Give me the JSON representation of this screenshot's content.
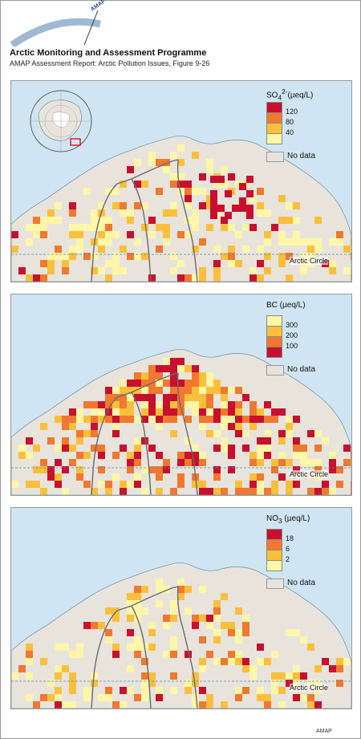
{
  "header": {
    "logo_text": "AMAP",
    "title": "Arctic Monitoring and Assessment Programme",
    "subtitle": "AMAP Assessment Report: Arctic Pollution Issues, Figure 9-26"
  },
  "panels": [
    {
      "id": "so4",
      "legend_title": "SO4 2- (µeq/L)",
      "legend_title_main": "SO",
      "legend_title_sub": "4",
      "legend_title_sup": "2-",
      "legend_title_unit": "(µeq/L)",
      "legend_labels": [
        "120",
        "80",
        "40"
      ],
      "legend_colors": [
        "#c8102e",
        "#f07830",
        "#fbbf3c",
        "#fff6a8"
      ],
      "nodata_label": "No data",
      "arctic_circle_label": "Arctic Circle"
    },
    {
      "id": "bc",
      "legend_title": "BC (µeq/L)",
      "legend_labels": [
        "300",
        "200",
        "100"
      ],
      "legend_colors": [
        "#fff6a8",
        "#fbbf3c",
        "#f07830",
        "#c8102e"
      ],
      "nodata_label": "No data",
      "arctic_circle_label": "Arctic Circle"
    },
    {
      "id": "no3",
      "legend_title": "NO3 (µeq/L)",
      "legend_title_main": "NO",
      "legend_title_sub": "3",
      "legend_title_unit": "(µeq/L)",
      "legend_labels": [
        "18",
        "6",
        "2"
      ],
      "legend_colors": [
        "#c8102e",
        "#f07830",
        "#fbbf3c",
        "#fff6a8"
      ],
      "nodata_label": "No data",
      "arctic_circle_label": "Arctic Circle"
    }
  ],
  "footer": {
    "credit": "AMAP"
  },
  "colors": {
    "sea": "#cfe6f2",
    "land": "#e8e4dc",
    "border": "#6a6a6a",
    "arctic_circle": "#4a8fb0"
  }
}
